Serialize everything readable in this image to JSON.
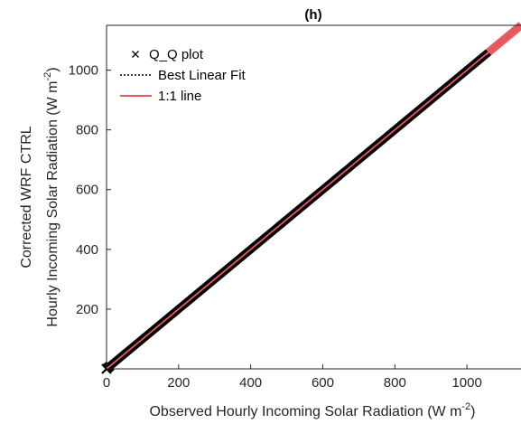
{
  "chart_data": {
    "type": "scatter",
    "title": "(h)",
    "xlabel": "Observed Hourly Incoming Solar Radiation (W m",
    "xlabel_sup": "-2",
    "xlabel_end": ")",
    "ylabel_line1": "Corrected WRF CTRL",
    "ylabel_line2": "Hourly Incoming Solar Radiation (W m",
    "ylabel_sup": "-2",
    "ylabel_end": ")",
    "xlim": [
      0,
      1150
    ],
    "ylim": [
      0,
      1150
    ],
    "xticks": [
      0,
      200,
      400,
      600,
      800,
      1000
    ],
    "yticks": [
      200,
      400,
      600,
      800,
      1000
    ],
    "xtick_labels": [
      "0",
      "200",
      "400",
      "600",
      "800",
      "1000"
    ],
    "ytick_labels": [
      "200",
      "400",
      "600",
      "800",
      "1000"
    ],
    "grid": false,
    "legend_position": "top-left",
    "series": [
      {
        "name": "Q_Q plot",
        "kind": "marker",
        "marker": "x",
        "color": "#000000",
        "x_range": [
          0,
          1150
        ],
        "slope": 1.0,
        "intercept": 0
      },
      {
        "name": "Best Linear Fit",
        "kind": "line",
        "style": "dotted",
        "color": "#000000",
        "x": [
          0,
          1150
        ],
        "y": [
          0,
          1150
        ]
      },
      {
        "name": "1:1 line",
        "kind": "line",
        "style": "solid",
        "color": "#e8585f",
        "x": [
          0,
          1150
        ],
        "y": [
          0,
          1150
        ]
      }
    ]
  }
}
